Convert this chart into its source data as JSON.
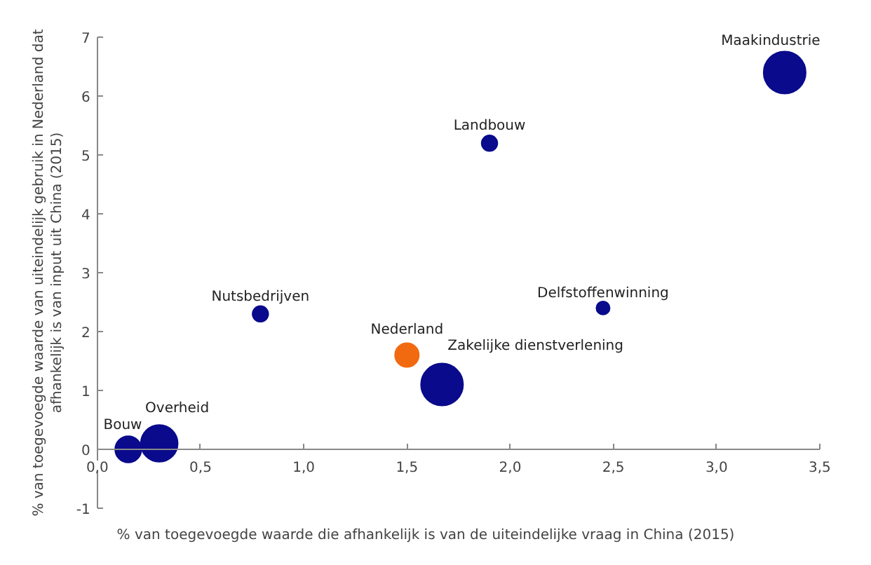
{
  "chart_data": {
    "type": "bubble",
    "xlabel": "% van toegevoegde waarde die afhankelijk is van de uiteindelijke vraag in China (2015)",
    "ylabel": "% van toegevoegde waarde van uiteindelijk gebruik in Nederland dat afhankelijk is van input uit China (2015)",
    "xlim": [
      0,
      3.5
    ],
    "ylim": [
      -1,
      7
    ],
    "xticks": [
      {
        "value": 0,
        "label": "0,0"
      },
      {
        "value": 0.5,
        "label": "0,5"
      },
      {
        "value": 1,
        "label": "1,0"
      },
      {
        "value": 1.5,
        "label": "1,5"
      },
      {
        "value": 2,
        "label": "2,0"
      },
      {
        "value": 2.5,
        "label": "2,5"
      },
      {
        "value": 3,
        "label": "3,0"
      },
      {
        "value": 3.5,
        "label": "3,5"
      }
    ],
    "yticks": [
      -1,
      0,
      1,
      2,
      3,
      4,
      5,
      6,
      7
    ],
    "grid": false,
    "legend": false,
    "series": [
      {
        "name": "Maakindustrie",
        "color": "#0a0a8c",
        "x": [
          3.33
        ],
        "values": [
          6.4
        ],
        "sizes": [
          1
        ]
      },
      {
        "name": "Landbouw",
        "color": "#0a0a8c",
        "x": [
          1.9
        ],
        "values": [
          5.2
        ],
        "sizes": [
          0.14
        ]
      },
      {
        "name": "Delfstoffenwinning",
        "color": "#0a0a8c",
        "x": [
          2.45
        ],
        "values": [
          2.4
        ],
        "sizes": [
          0.1
        ]
      },
      {
        "name": "Nutsbedrijven",
        "color": "#0a0a8c",
        "x": [
          0.79
        ],
        "values": [
          2.3
        ],
        "sizes": [
          0.14
        ]
      },
      {
        "name": "Nederland",
        "color": "#f26a10",
        "x": [
          1.5
        ],
        "values": [
          1.6
        ],
        "sizes": [
          0.32
        ]
      },
      {
        "name": "Zakelijke dienstverlening",
        "color": "#0a0a8c",
        "x": [
          1.67
        ],
        "values": [
          1.1
        ],
        "sizes": [
          1
        ]
      },
      {
        "name": "Overheid",
        "color": "#0a0a8c",
        "x": [
          0.3
        ],
        "values": [
          0.1
        ],
        "sizes": [
          0.77
        ]
      },
      {
        "name": "Bouw",
        "color": "#0a0a8c",
        "x": [
          0.15
        ],
        "values": [
          0.0
        ],
        "sizes": [
          0.39
        ]
      }
    ]
  }
}
